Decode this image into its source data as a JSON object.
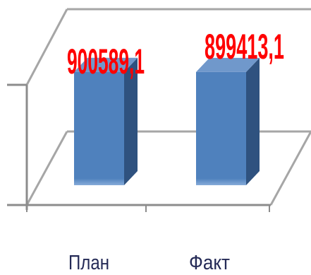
{
  "chart_data": {
    "type": "bar",
    "three_d": true,
    "categories": [
      "План",
      "Факт"
    ],
    "values": [
      900589.1,
      899413.1
    ],
    "data_labels": [
      "900589,1",
      "899413,1"
    ],
    "ylim": [
      0,
      1000000
    ],
    "grid": true,
    "legend": "none",
    "colors": {
      "bar": "#4F81BD",
      "bar_side": "#2F527F",
      "bar_top": "#7098CB",
      "data_label": "#FF0000",
      "category_label": "#242A56"
    }
  }
}
